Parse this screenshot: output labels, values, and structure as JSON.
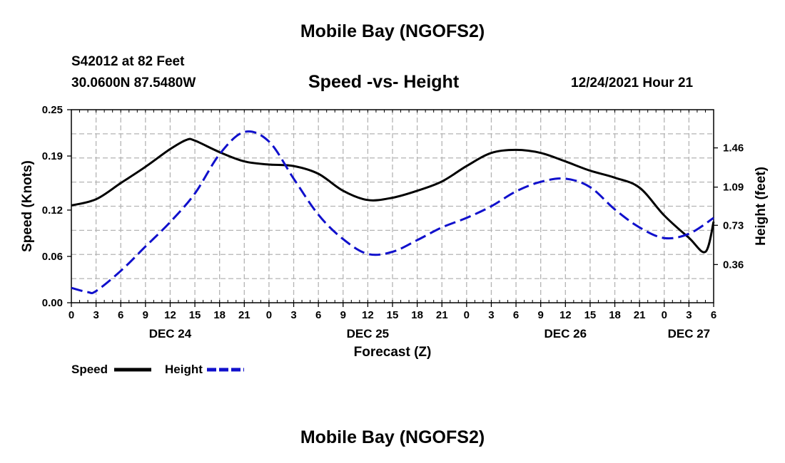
{
  "page": {
    "title_top": "Mobile Bay (NGOFS2)",
    "title_bottom": "Mobile Bay (NGOFS2)",
    "station": "S42012 at 82 Feet",
    "coords": "30.0600N  87.5480W",
    "chart_title": "Speed -vs- Height",
    "datetime": "12/24/2021 Hour 21"
  },
  "legend": {
    "speed": "Speed",
    "height": "Height"
  },
  "colors": {
    "speed": "#000000",
    "height": "#1010cc",
    "grid": "#b4b4b4"
  },
  "chart_data": {
    "type": "line",
    "title": "Speed -vs- Height",
    "xlabel": "Forecast (Z)",
    "ylabel_left": "Speed (Knots)",
    "ylabel_right": "Height (feet)",
    "x_range": [
      0,
      78
    ],
    "x_ticks": [
      0,
      3,
      6,
      9,
      12,
      15,
      18,
      21,
      24,
      27,
      30,
      33,
      36,
      39,
      42,
      45,
      48,
      51,
      54,
      57,
      60,
      63,
      66,
      69,
      72,
      75,
      78
    ],
    "x_tick_labels": [
      "0",
      "3",
      "6",
      "9",
      "12",
      "15",
      "18",
      "21",
      "0",
      "3",
      "6",
      "9",
      "12",
      "15",
      "18",
      "21",
      "0",
      "3",
      "6",
      "9",
      "12",
      "15",
      "18",
      "21",
      "0",
      "3",
      "6"
    ],
    "day_labels": [
      {
        "x": 12,
        "label": "DEC 24"
      },
      {
        "x": 36,
        "label": "DEC 25"
      },
      {
        "x": 60,
        "label": "DEC 26"
      },
      {
        "x": 75,
        "label": "DEC 27"
      }
    ],
    "ylim_left": [
      0,
      0.25
    ],
    "y_ticks_left": [
      0.0,
      0.06,
      0.12,
      0.19,
      0.25
    ],
    "y_tick_labels_left": [
      "0.00",
      "0.06",
      "0.12",
      "0.19",
      "0.25"
    ],
    "ylim_right": [
      0,
      1.82
    ],
    "y_ticks_right": [
      0.36,
      0.73,
      1.09,
      1.46
    ],
    "y_tick_labels_right": [
      "0.36",
      "0.73",
      "1.09",
      "1.46"
    ],
    "grid": true,
    "series": [
      {
        "name": "Speed",
        "axis": "left",
        "style": "solid",
        "points": [
          [
            0,
            0.126
          ],
          [
            3,
            0.134
          ],
          [
            6,
            0.155
          ],
          [
            9,
            0.176
          ],
          [
            12,
            0.199
          ],
          [
            14,
            0.211
          ],
          [
            15,
            0.21
          ],
          [
            18,
            0.195
          ],
          [
            21,
            0.183
          ],
          [
            24,
            0.179
          ],
          [
            27,
            0.177
          ],
          [
            30,
            0.167
          ],
          [
            33,
            0.145
          ],
          [
            36,
            0.133
          ],
          [
            39,
            0.136
          ],
          [
            42,
            0.145
          ],
          [
            45,
            0.157
          ],
          [
            48,
            0.177
          ],
          [
            51,
            0.194
          ],
          [
            54,
            0.198
          ],
          [
            57,
            0.194
          ],
          [
            60,
            0.183
          ],
          [
            63,
            0.171
          ],
          [
            66,
            0.162
          ],
          [
            69,
            0.149
          ],
          [
            72,
            0.113
          ],
          [
            75,
            0.084
          ],
          [
            77,
            0.066
          ],
          [
            78,
            0.105
          ]
        ]
      },
      {
        "name": "Height",
        "axis": "right",
        "style": "dashed",
        "points": [
          [
            0,
            0.14
          ],
          [
            2,
            0.1
          ],
          [
            3,
            0.11
          ],
          [
            6,
            0.3
          ],
          [
            9,
            0.53
          ],
          [
            12,
            0.76
          ],
          [
            15,
            1.03
          ],
          [
            18,
            1.4
          ],
          [
            21,
            1.61
          ],
          [
            24,
            1.52
          ],
          [
            27,
            1.17
          ],
          [
            30,
            0.83
          ],
          [
            33,
            0.6
          ],
          [
            36,
            0.46
          ],
          [
            39,
            0.48
          ],
          [
            42,
            0.59
          ],
          [
            45,
            0.71
          ],
          [
            48,
            0.8
          ],
          [
            51,
            0.91
          ],
          [
            54,
            1.05
          ],
          [
            57,
            1.14
          ],
          [
            60,
            1.17
          ],
          [
            63,
            1.09
          ],
          [
            66,
            0.88
          ],
          [
            69,
            0.71
          ],
          [
            72,
            0.61
          ],
          [
            75,
            0.65
          ],
          [
            78,
            0.8
          ]
        ]
      }
    ]
  }
}
